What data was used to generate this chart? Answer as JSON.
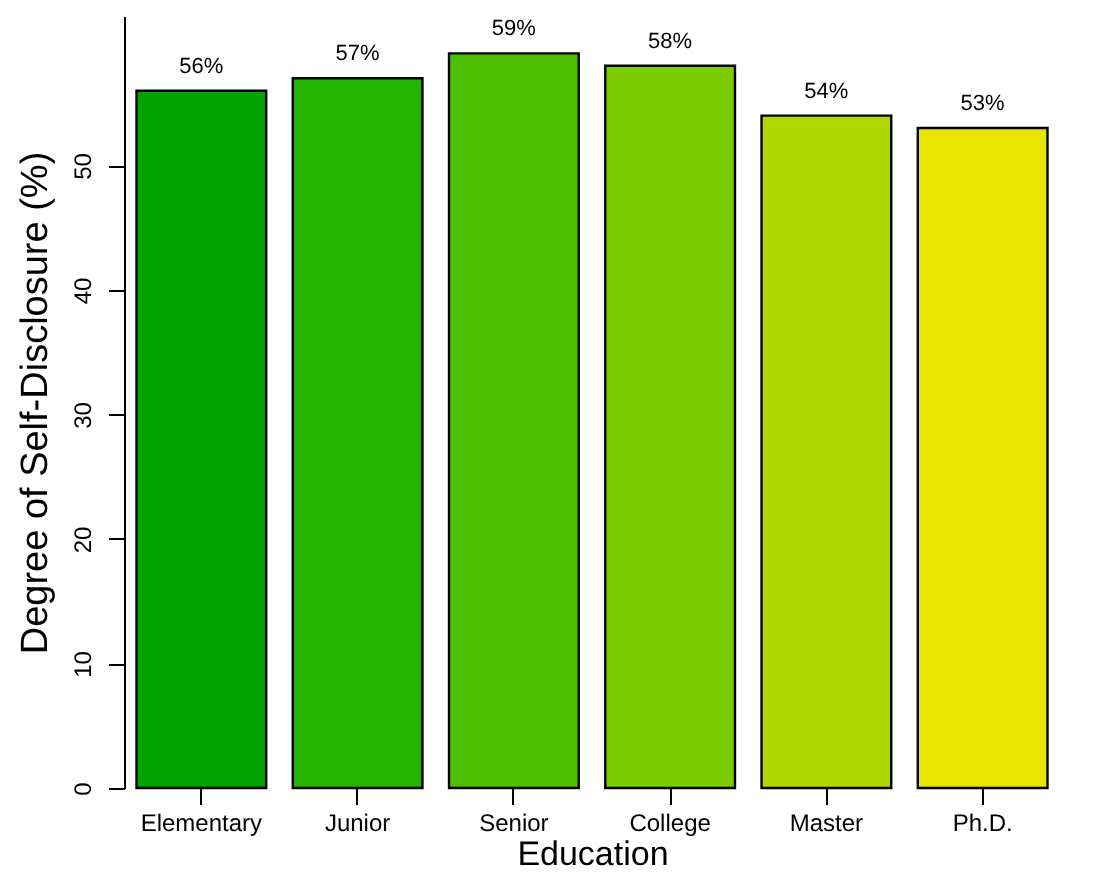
{
  "chart_data": {
    "type": "bar",
    "xlabel": "Education",
    "ylabel": "Degree of Self-Disclosure (%)",
    "categories": [
      "Elementary",
      "Junior",
      "Senior",
      "College",
      "Master",
      "Ph.D."
    ],
    "values": [
      56,
      57,
      59,
      58,
      54,
      53
    ],
    "colors": [
      "#00a300",
      "#24b300",
      "#4cc000",
      "#7dcc00",
      "#b0d800",
      "#e6e600"
    ],
    "value_labels": [
      "56%",
      "57%",
      "59%",
      "58%",
      "54%",
      "53%"
    ],
    "ylim": [
      0,
      62
    ],
    "yticks": [
      0,
      10,
      20,
      30,
      40,
      50
    ],
    "grid": false
  }
}
